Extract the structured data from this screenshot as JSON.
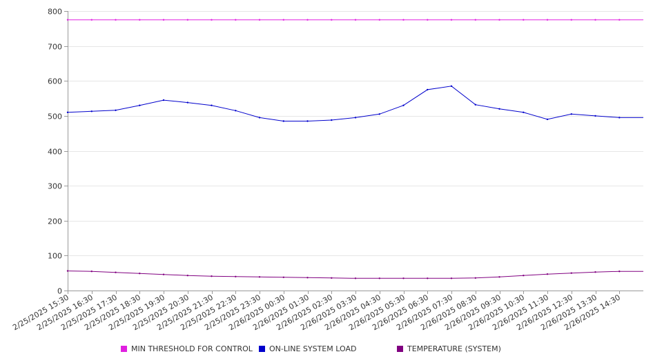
{
  "chart_data": {
    "type": "line",
    "title": "",
    "xlabel": "",
    "ylabel": "",
    "ylim": [
      0,
      800
    ],
    "yticks": [
      0,
      100,
      200,
      300,
      400,
      500,
      600,
      700,
      800
    ],
    "grid": true,
    "legend_position": "bottom",
    "categories": [
      "2/25/2025 15:30",
      "2/25/2025 16:30",
      "2/25/2025 17:30",
      "2/25/2025 18:30",
      "2/25/2025 19:30",
      "2/25/2025 20:30",
      "2/25/2025 21:30",
      "2/25/2025 22:30",
      "2/25/2025 23:30",
      "2/26/2025 00:30",
      "2/26/2025 01:30",
      "2/26/2025 02:30",
      "2/26/2025 03:30",
      "2/26/2025 04:30",
      "2/26/2025 05:30",
      "2/26/2025 06:30",
      "2/26/2025 07:30",
      "2/26/2025 08:30",
      "2/26/2025 09:30",
      "2/26/2025 10:30",
      "2/26/2025 11:30",
      "2/26/2025 12:30",
      "2/26/2025 13:30",
      "2/26/2025 14:30"
    ],
    "series": [
      {
        "name": "MIN THRESHOLD FOR CONTROL",
        "color": "#e020e0",
        "values": [
          775,
          775,
          775,
          775,
          775,
          775,
          775,
          775,
          775,
          775,
          775,
          775,
          775,
          775,
          775,
          775,
          775,
          775,
          775,
          775,
          775,
          775,
          775,
          775
        ]
      },
      {
        "name": "ON-LINE SYSTEM LOAD",
        "color": "#0000cc",
        "values": [
          510,
          513,
          516,
          530,
          545,
          538,
          530,
          515,
          495,
          485,
          485,
          488,
          495,
          505,
          530,
          575,
          585,
          532,
          520,
          510,
          490,
          505,
          500,
          495
        ]
      },
      {
        "name": "TEMPERATURE (SYSTEM)",
        "color": "#800080",
        "values": [
          56,
          55,
          52,
          49,
          46,
          43,
          41,
          40,
          39,
          38,
          37,
          36,
          35,
          35,
          35,
          35,
          35,
          36,
          39,
          43,
          47,
          50,
          53,
          55
        ]
      }
    ]
  }
}
